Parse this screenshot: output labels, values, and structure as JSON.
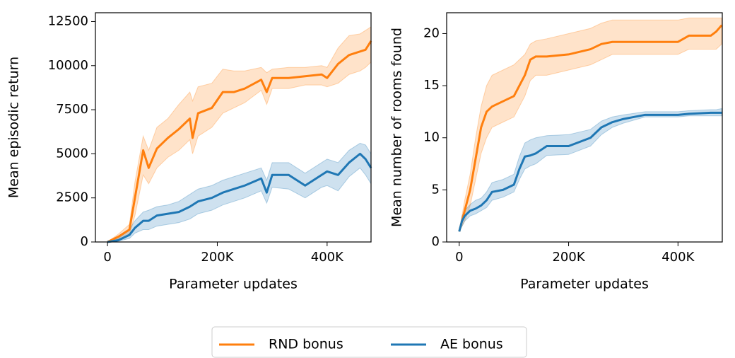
{
  "chart_data": [
    {
      "type": "line",
      "xlabel": "Parameter updates",
      "ylabel": "Mean episodic return",
      "x": [
        0,
        20000,
        40000,
        50000,
        65000,
        75000,
        90000,
        110000,
        130000,
        150000,
        155000,
        165000,
        190000,
        210000,
        230000,
        250000,
        280000,
        290000,
        300000,
        330000,
        360000,
        390000,
        400000,
        420000,
        440000,
        460000,
        470000,
        480000
      ],
      "xlim": [
        -22000,
        480000
      ],
      "ylim": [
        0,
        13000
      ],
      "xticks": [
        0,
        {
          "value": 200000,
          "label": "200K"
        },
        {
          "value": 400000,
          "label": "400K"
        }
      ],
      "yticks": [
        0,
        2500,
        5000,
        7500,
        10000,
        12500
      ],
      "series": [
        {
          "name": "RND bonus",
          "color": "#ff7f0e",
          "values": [
            0,
            300,
            700,
            2500,
            5200,
            4200,
            5300,
            5900,
            6400,
            7000,
            5900,
            7300,
            7600,
            8500,
            8500,
            8700,
            9200,
            8500,
            9300,
            9300,
            9400,
            9500,
            9300,
            10100,
            10600,
            10800,
            10900,
            11400
          ],
          "lower": [
            0,
            150,
            400,
            1500,
            3800,
            3300,
            4200,
            4800,
            5200,
            5800,
            5000,
            6000,
            6500,
            7300,
            7600,
            7900,
            8600,
            7800,
            8700,
            8700,
            8900,
            8900,
            8800,
            9000,
            9500,
            9700,
            9900,
            10200
          ],
          "upper": [
            0,
            450,
            1000,
            3400,
            6000,
            5200,
            6500,
            7000,
            7800,
            8500,
            8000,
            8800,
            9000,
            9800,
            9700,
            9700,
            9900,
            9600,
            9800,
            9900,
            9900,
            10000,
            9900,
            11000,
            11700,
            11800,
            12000,
            12200
          ]
        },
        {
          "name": "AE bonus",
          "color": "#1f77b4",
          "values": [
            0,
            100,
            400,
            800,
            1200,
            1200,
            1500,
            1600,
            1700,
            2000,
            2100,
            2300,
            2500,
            2800,
            3000,
            3200,
            3600,
            2800,
            3800,
            3800,
            3200,
            3800,
            4000,
            3800,
            4500,
            5000,
            4700,
            4200
          ],
          "lower": [
            0,
            50,
            200,
            500,
            700,
            700,
            900,
            1000,
            1100,
            1300,
            1400,
            1600,
            1800,
            2100,
            2300,
            2500,
            2900,
            2200,
            3100,
            3000,
            2500,
            3100,
            3200,
            2900,
            3700,
            4200,
            3800,
            3300
          ],
          "upper": [
            0,
            200,
            700,
            1200,
            1700,
            1800,
            2000,
            2100,
            2300,
            2700,
            2800,
            3000,
            3200,
            3500,
            3700,
            3900,
            4200,
            3500,
            4500,
            4500,
            3900,
            4500,
            4700,
            4500,
            5200,
            5600,
            5500,
            5000
          ]
        }
      ]
    },
    {
      "type": "line",
      "xlabel": "Parameter updates",
      "ylabel": "Mean number of rooms found",
      "x": [
        0,
        5000,
        10000,
        20000,
        30000,
        40000,
        50000,
        60000,
        80000,
        100000,
        110000,
        120000,
        130000,
        140000,
        160000,
        200000,
        240000,
        260000,
        280000,
        300000,
        340000,
        400000,
        420000,
        460000,
        470000,
        480000
      ],
      "xlim": [
        -23000,
        481000
      ],
      "ylim": [
        0,
        22
      ],
      "xticks": [
        0,
        {
          "value": 200000,
          "label": "200K"
        },
        {
          "value": 400000,
          "label": "400K"
        }
      ],
      "yticks": [
        0,
        5,
        10,
        15,
        20
      ],
      "series": [
        {
          "color": "#ff7f0e",
          "values": [
            1,
            2,
            3,
            5,
            8,
            11,
            12.5,
            13,
            13.5,
            14,
            15,
            16,
            17.5,
            17.8,
            17.8,
            18,
            18.5,
            19,
            19.2,
            19.2,
            19.2,
            19.2,
            19.8,
            19.8,
            20.2,
            20.8
          ],
          "lower": [
            1,
            1.5,
            2,
            3.5,
            6,
            8.5,
            10,
            11,
            11.5,
            12,
            13,
            14,
            15.5,
            16,
            16,
            16.5,
            17,
            17.5,
            18,
            18,
            18,
            18,
            18.5,
            18.5,
            18.5,
            19
          ],
          "upper": [
            1,
            2.5,
            4,
            6.5,
            10,
            13,
            15,
            16,
            16.5,
            17,
            17.5,
            18,
            19,
            19.3,
            19.5,
            20,
            20.5,
            21,
            21.3,
            21.3,
            21.3,
            21.3,
            21.5,
            21.5,
            21.5,
            21.5
          ]
        },
        {
          "color": "#1f77b4",
          "values": [
            1,
            2,
            2.5,
            3,
            3.2,
            3.5,
            4,
            4.8,
            5,
            5.5,
            7,
            8.2,
            8.3,
            8.5,
            9.2,
            9.2,
            10,
            11,
            11.5,
            11.8,
            12.2,
            12.2,
            12.3,
            12.4,
            12.4,
            12.4
          ],
          "lower": [
            1,
            1.5,
            2,
            2.5,
            2.7,
            3,
            3.3,
            4,
            4.3,
            4.8,
            6,
            7,
            7.3,
            7.5,
            8.3,
            8.4,
            9.2,
            10.3,
            11,
            11.4,
            12,
            12,
            12.1,
            12.1,
            12.1,
            12.1
          ],
          "upper": [
            1,
            2.5,
            3,
            3.6,
            4,
            4.2,
            4.8,
            5.7,
            6,
            6.5,
            8.2,
            9.5,
            9.8,
            10,
            10.2,
            10.3,
            10.8,
            11.6,
            12,
            12.2,
            12.5,
            12.5,
            12.6,
            12.7,
            12.7,
            12.8
          ]
        }
      ]
    }
  ]
}
